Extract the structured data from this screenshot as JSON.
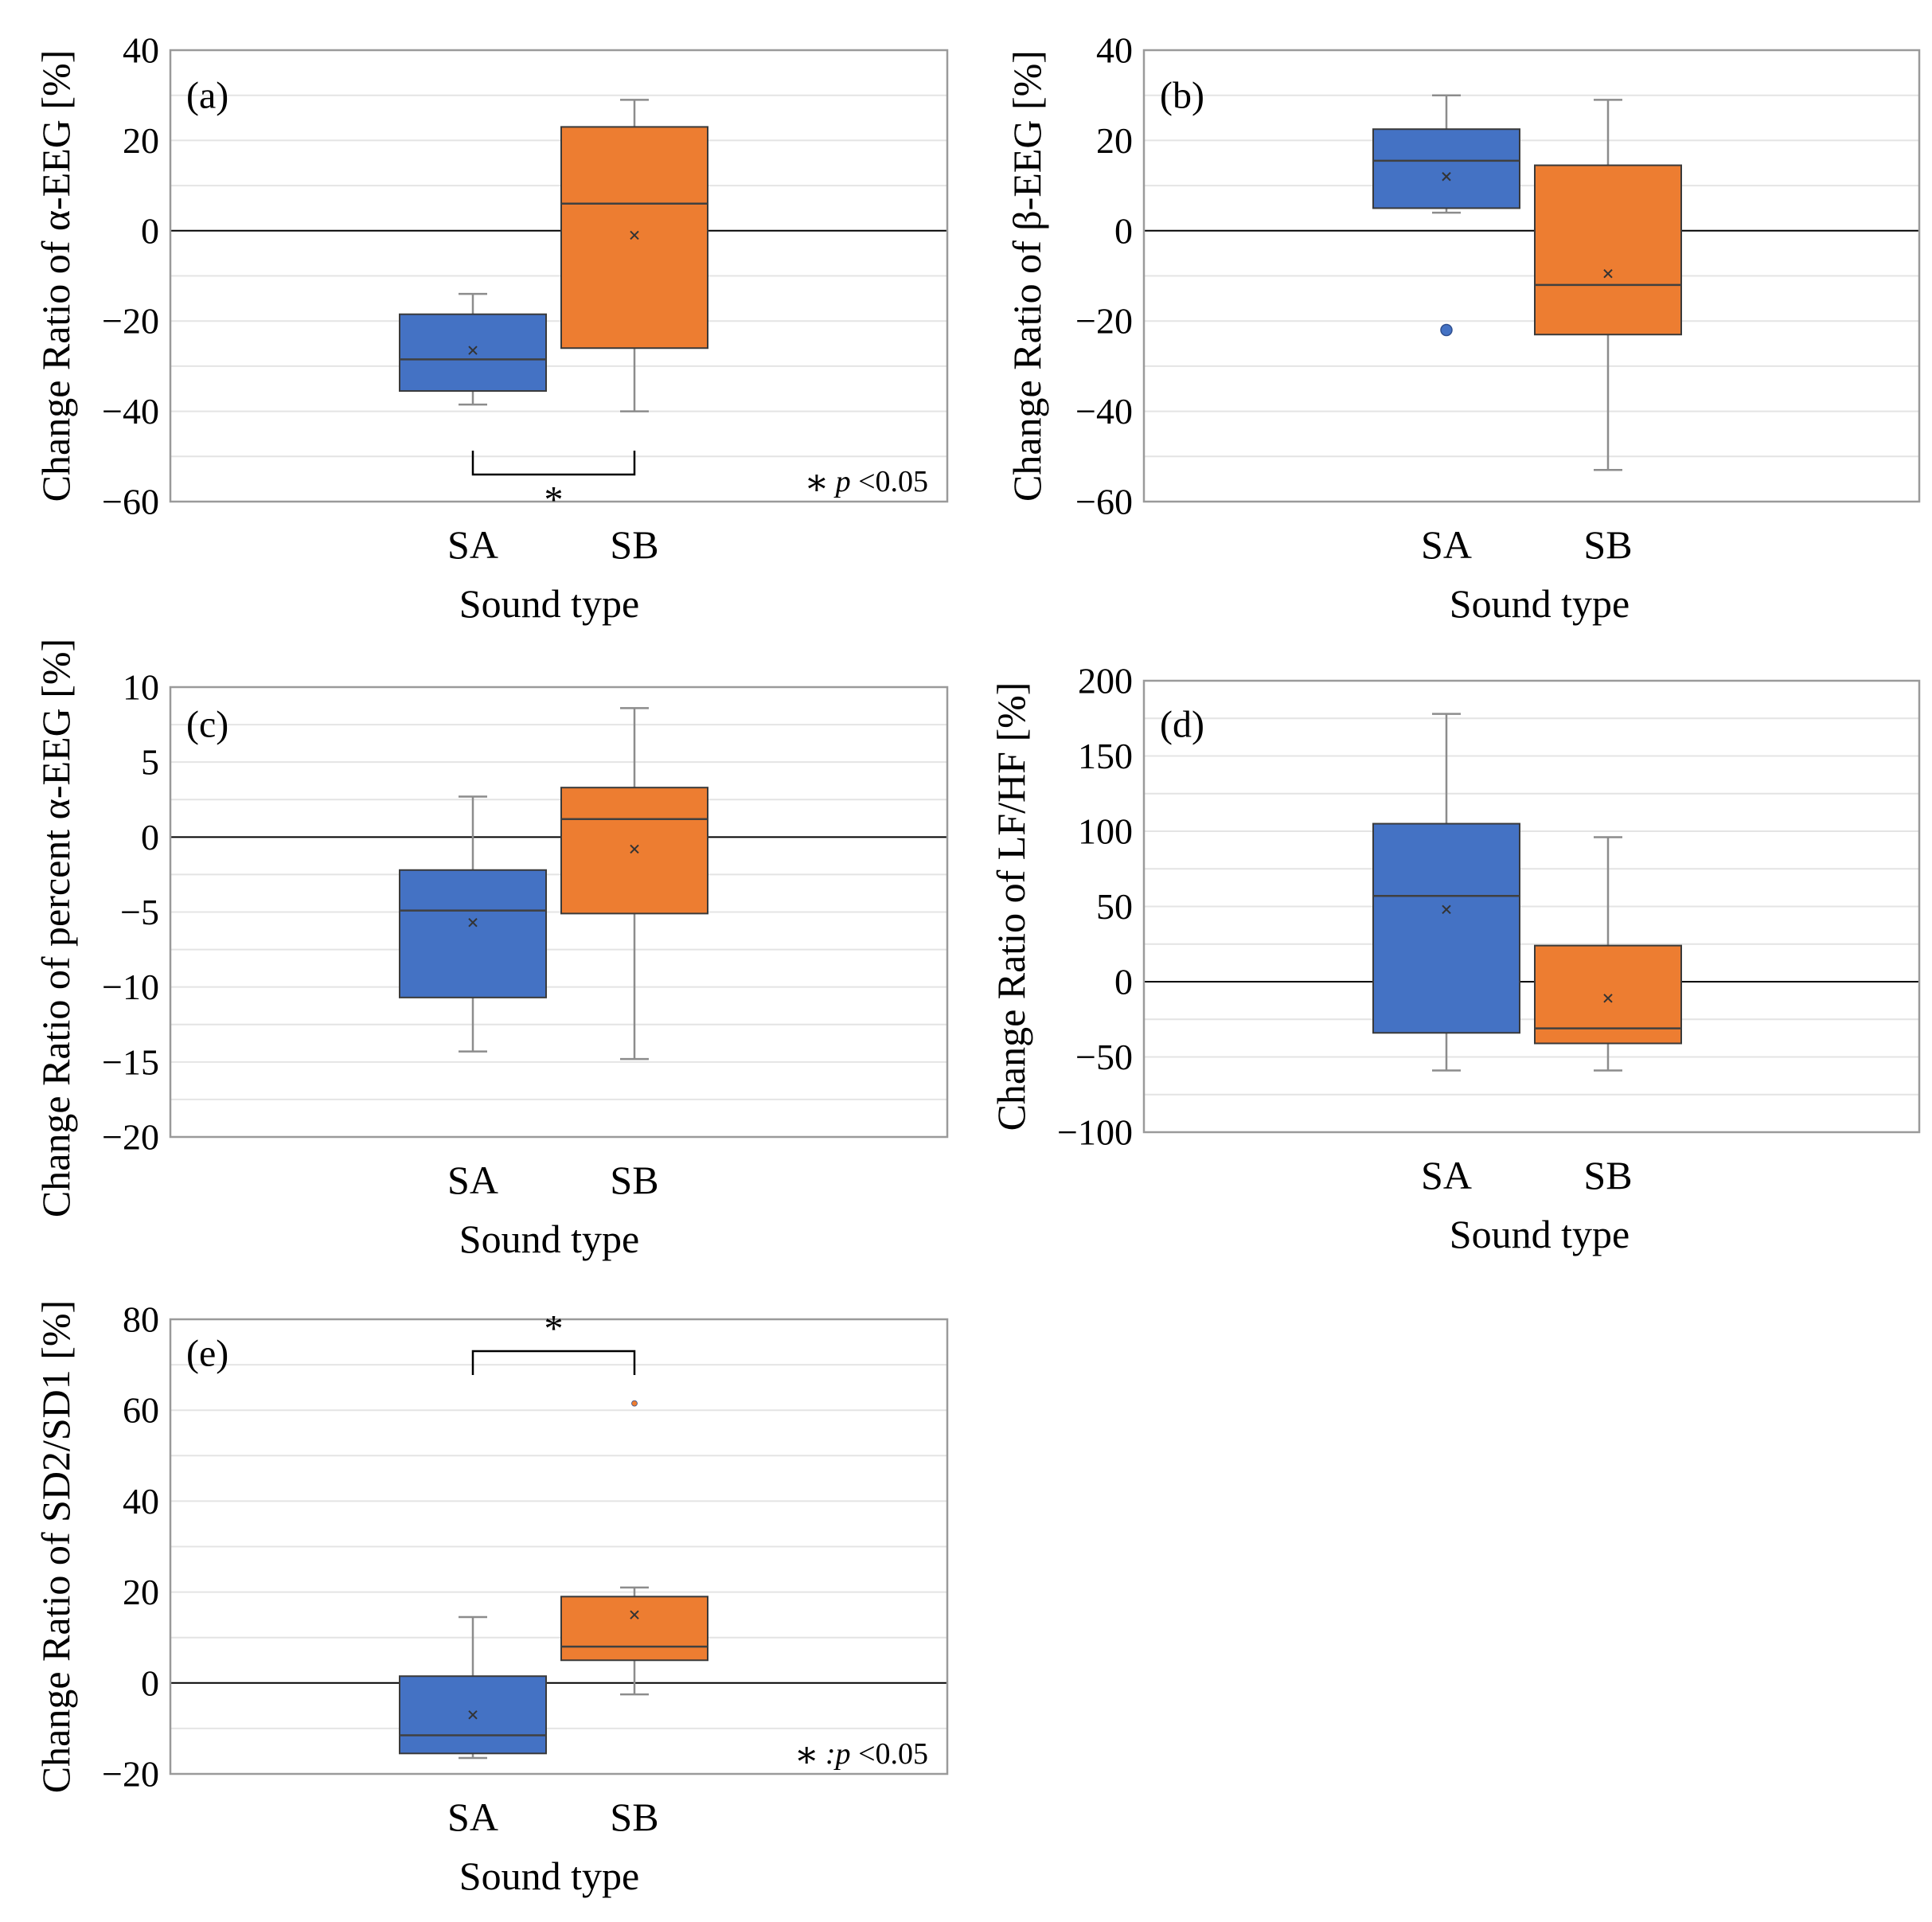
{
  "colors": {
    "SA": "#4472c4",
    "SB": "#ed7d31",
    "gridline": "#e4e4e4",
    "frame": "#9a9a9a",
    "whisker": "#8c8c8c",
    "zero_line": "#000000"
  },
  "chart_data": [
    {
      "id": "a",
      "type": "box",
      "panel_label": "(a)",
      "ylabel": "Change Ratio of α-EEG [%]",
      "xlabel": "Sound type",
      "ylim": [
        -60,
        40
      ],
      "yticks": [
        40,
        20,
        0,
        -20,
        -40,
        -60
      ],
      "ytick_labels": [
        "40",
        "20",
        "0",
        "−20",
        "−40",
        "−60"
      ],
      "minor_grid_step": 10,
      "categories": [
        "SA",
        "SB"
      ],
      "boxes": [
        {
          "category": "SA",
          "whisker_low": -38.5,
          "q1": -35.5,
          "median": -28.5,
          "mean": -26.5,
          "q3": -18.5,
          "whisker_high": -14,
          "outliers": []
        },
        {
          "category": "SB",
          "whisker_low": -40,
          "q1": -26,
          "median": 6,
          "mean": -1,
          "q3": 23,
          "whisker_high": 29,
          "outliers": []
        }
      ],
      "significance": {
        "between": [
          "SA",
          "SB"
        ],
        "value": -54,
        "position": "below",
        "marker": "*"
      },
      "legend_note": {
        "symbol": "∗",
        "text": "p",
        "suffix": " <0.05"
      }
    },
    {
      "id": "b",
      "type": "box",
      "panel_label": "(b)",
      "ylabel": "Change Ratio of β-EEG [%]",
      "xlabel": "Sound type",
      "ylim": [
        -60,
        40
      ],
      "yticks": [
        40,
        20,
        0,
        -20,
        -40,
        -60
      ],
      "ytick_labels": [
        "40",
        "20",
        "0",
        "−20",
        "−40",
        "−60"
      ],
      "minor_grid_step": 10,
      "categories": [
        "SA",
        "SB"
      ],
      "boxes": [
        {
          "category": "SA",
          "whisker_low": 4,
          "q1": 5,
          "median": 15.5,
          "mean": 12,
          "q3": 22.5,
          "whisker_high": 30,
          "outliers": [
            -22
          ]
        },
        {
          "category": "SB",
          "whisker_low": -53,
          "q1": -23,
          "median": -12,
          "mean": -9.5,
          "q3": 14.5,
          "whisker_high": 29,
          "outliers": []
        }
      ]
    },
    {
      "id": "c",
      "type": "box",
      "panel_label": "(c)",
      "ylabel": "Change Ratio of percent α-EEG [%]",
      "xlabel": "Sound type",
      "ylim": [
        -20,
        10
      ],
      "yticks": [
        10,
        5,
        0,
        -5,
        -10,
        -15,
        -20
      ],
      "ytick_labels": [
        "10",
        "5",
        "0",
        "−5",
        "−10",
        "−15",
        "−20"
      ],
      "minor_grid_step": 2.5,
      "categories": [
        "SA",
        "SB"
      ],
      "boxes": [
        {
          "category": "SA",
          "whisker_low": -14.3,
          "q1": -10.7,
          "median": -4.9,
          "mean": -5.7,
          "q3": -2.2,
          "whisker_high": 2.7,
          "outliers": []
        },
        {
          "category": "SB",
          "whisker_low": -14.8,
          "q1": -5.1,
          "median": 1.2,
          "mean": -0.8,
          "q3": 3.3,
          "whisker_high": 8.6,
          "outliers": []
        }
      ]
    },
    {
      "id": "d",
      "type": "box",
      "panel_label": "(d)",
      "ylabel": "Change Ratio of LF/HF [%]",
      "xlabel": "Sound type",
      "ylim": [
        -100,
        200
      ],
      "yticks": [
        200,
        150,
        100,
        50,
        0,
        -50,
        -100
      ],
      "ytick_labels": [
        "200",
        "150",
        "100",
        "50",
        "0",
        "−50",
        "−100"
      ],
      "minor_grid_step": 25,
      "categories": [
        "SA",
        "SB"
      ],
      "boxes": [
        {
          "category": "SA",
          "whisker_low": -59,
          "q1": -34,
          "median": 57,
          "mean": 48,
          "q3": 105,
          "whisker_high": 178,
          "outliers": []
        },
        {
          "category": "SB",
          "whisker_low": -59,
          "q1": -41,
          "median": -31,
          "mean": -11,
          "q3": 24,
          "whisker_high": 96,
          "outliers": []
        }
      ]
    },
    {
      "id": "e",
      "type": "box",
      "panel_label": "(e)",
      "ylabel": "Change Ratio of SD2/SD1 [%]",
      "xlabel": "Sound type",
      "ylim": [
        -20,
        80
      ],
      "yticks": [
        80,
        60,
        40,
        20,
        0,
        -20
      ],
      "ytick_labels": [
        "80",
        "60",
        "40",
        "20",
        "0",
        "−20"
      ],
      "minor_grid_step": 10,
      "categories": [
        "SA",
        "SB"
      ],
      "boxes": [
        {
          "category": "SA",
          "whisker_low": -16.5,
          "q1": -15.5,
          "median": -11.5,
          "mean": -7,
          "q3": 1.5,
          "whisker_high": 14.5,
          "outliers": []
        },
        {
          "category": "SB",
          "whisker_low": -2.5,
          "q1": 5,
          "median": 8,
          "mean": 15,
          "q3": 19,
          "whisker_high": 21,
          "outliers": [
            61.5
          ]
        }
      ],
      "significance": {
        "between": [
          "SA",
          "SB"
        ],
        "value": 73,
        "position": "above",
        "marker": "*"
      },
      "legend_note": {
        "symbol": "∗",
        "text": ":p",
        "suffix": " <0.05"
      }
    }
  ]
}
